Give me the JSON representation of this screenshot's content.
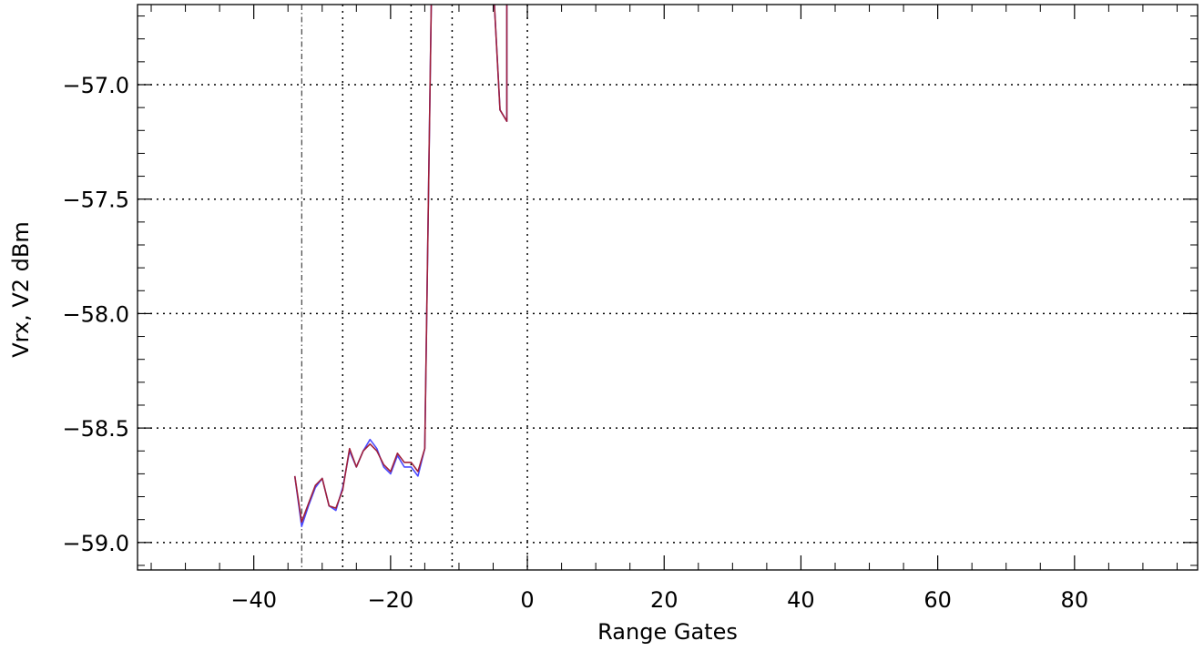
{
  "chart_data": {
    "type": "line",
    "xlabel": "Range Gates",
    "ylabel": "Vrx, V2 dBm",
    "xlim": [
      -57,
      98
    ],
    "ylim": [
      -59.12,
      -56.65
    ],
    "x_ticks": [
      -40,
      -20,
      0,
      20,
      40,
      60,
      80
    ],
    "x_tick_labels": [
      "−40",
      "−20",
      "0",
      "20",
      "40",
      "60",
      "80"
    ],
    "y_ticks": [
      -57.0,
      -57.5,
      -58.0,
      -58.5,
      -59.0
    ],
    "y_tick_labels": [
      "−57.0",
      "−57.5",
      "−58.0",
      "−58.5",
      "−59.0"
    ],
    "grid_y": true,
    "vertical_markers": [
      {
        "x": -33,
        "style": "dash-dot"
      },
      {
        "x": -27,
        "style": "dotted"
      },
      {
        "x": -17,
        "style": "dotted"
      },
      {
        "x": -11,
        "style": "dotted"
      },
      {
        "x": 0,
        "style": "dotted"
      }
    ],
    "series": [
      {
        "color": "#4a4aff",
        "x": [
          -34,
          -33,
          -32,
          -31,
          -30,
          -29,
          -28,
          -27,
          -26,
          -25,
          -24,
          -23,
          -22,
          -21,
          -20,
          -19,
          -18,
          -17,
          -16,
          -15,
          -14,
          -5,
          -4,
          -3,
          -3
        ],
        "values": [
          -58.71,
          -58.93,
          -58.84,
          -58.76,
          -58.72,
          -58.84,
          -58.86,
          -58.76,
          -58.6,
          -58.67,
          -58.6,
          -58.55,
          -58.59,
          -58.67,
          -58.7,
          -58.62,
          -58.67,
          -58.67,
          -58.71,
          -58.59,
          -56.55,
          -56.55,
          -57.11,
          -57.16,
          -56.55
        ]
      },
      {
        "color": "#a0203a",
        "x": [
          -34,
          -33,
          -32,
          -31,
          -30,
          -29,
          -28,
          -27,
          -26,
          -25,
          -24,
          -23,
          -22,
          -21,
          -20,
          -19,
          -18,
          -17,
          -16,
          -15,
          -14,
          -5,
          -4,
          -3,
          -3
        ],
        "values": [
          -58.71,
          -58.91,
          -58.83,
          -58.75,
          -58.72,
          -58.84,
          -58.85,
          -58.77,
          -58.59,
          -58.67,
          -58.6,
          -58.57,
          -58.6,
          -58.66,
          -58.69,
          -58.61,
          -58.65,
          -58.65,
          -58.69,
          -58.59,
          -56.55,
          -56.55,
          -57.11,
          -57.16,
          -56.55
        ]
      }
    ]
  }
}
